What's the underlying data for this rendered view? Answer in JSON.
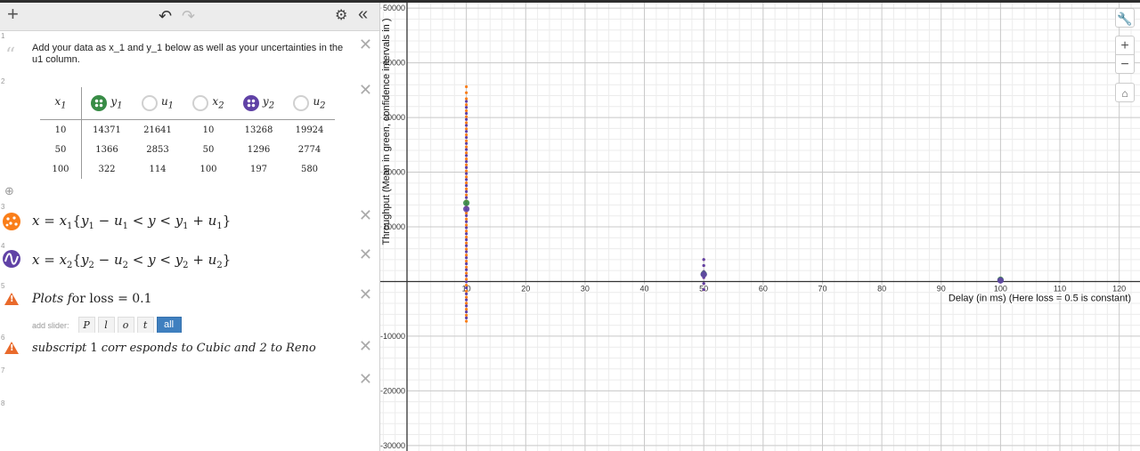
{
  "toolbar": {
    "add_label": "+",
    "undo_label": "↶",
    "redo_label": "↷",
    "settings_label": "⚙",
    "collapse_label": "«"
  },
  "expressions": [
    {
      "index": "1",
      "type": "note",
      "text": "Add your data as x_1 and y_1 below as well as your uncertainties in the u1 column."
    },
    {
      "index": "2",
      "type": "table",
      "headers": [
        "x",
        "y",
        "u",
        "x",
        "y",
        "u"
      ],
      "header_subs": [
        "1",
        "1",
        "1",
        "2",
        "2",
        "2"
      ],
      "rows": [
        [
          "10",
          "14371",
          "21641",
          "10",
          "13268",
          "19924"
        ],
        [
          "50",
          "1366",
          "2853",
          "50",
          "1296",
          "2774"
        ],
        [
          "100",
          "322",
          "114",
          "100",
          "197",
          "580"
        ]
      ]
    },
    {
      "index": "3",
      "type": "expression",
      "icon": "points-icon"
    },
    {
      "index": "4",
      "type": "expression",
      "icon": "curve-icon"
    },
    {
      "index": "5",
      "type": "expression",
      "text_a": "Plots ",
      "text_b": "f",
      "text_c": "or loss = 0.1",
      "slider_label": "add slider:",
      "slider_buttons": [
        "P",
        "l",
        "o",
        "t",
        "all"
      ]
    },
    {
      "index": "6",
      "type": "expression",
      "text_a": "subscript ",
      "text_b": "1",
      "text_c": " corr esponds to Cubic and 2 to Reno"
    },
    {
      "index": "7",
      "type": "empty"
    },
    {
      "index": "8",
      "type": "empty"
    }
  ],
  "expr3_math": {
    "lhs": "x",
    "sub1": "1",
    "y": "y",
    "u": "u"
  },
  "expr4_math": {
    "lhs": "x",
    "sub1": "2",
    "y": "y",
    "u": "u"
  },
  "graph": {
    "x_label": "Delay (in ms) (Here loss = 0.5 is constant)",
    "y_label": "Throughput (Mean in green, confidence intervals in )",
    "x_ticks": [
      "10",
      "20",
      "30",
      "40",
      "50",
      "60",
      "70",
      "80",
      "90",
      "100",
      "110",
      "120"
    ],
    "y_ticks": [
      "50000",
      "40000",
      "30000",
      "20000",
      "10000",
      "-10000",
      "-20000",
      "-30000"
    ],
    "controls": [
      "wrench-icon",
      "zoom-in-icon",
      "zoom-out-icon",
      "home-icon"
    ]
  },
  "colors": {
    "green": "#388c46",
    "purple": "#6042a6",
    "orange": "#fa7e19",
    "red": "#c74440",
    "accent": "#3f7fbf"
  },
  "chart_data": {
    "type": "scatter",
    "xlabel": "Delay (in ms) (Here loss = 0.5 is constant)",
    "ylabel": "Throughput (Mean in green, confidence intervals in )",
    "xlim": [
      -4.5,
      123.5
    ],
    "ylim": [
      -31000,
      51000
    ],
    "grid": true,
    "series": [
      {
        "color": "#388c46",
        "x": [
          10,
          50,
          100
        ],
        "y": [
          14371,
          1366,
          322
        ]
      },
      {
        "color": "#6042a6",
        "x": [
          10,
          50,
          100
        ],
        "y": [
          13268,
          1296,
          197
        ]
      }
    ],
    "intervals": [
      {
        "color": "#fa7e19",
        "x": 10,
        "y_low": -7270,
        "y_high": 36012
      },
      {
        "color": "#c74440",
        "x": 50,
        "y_low": -1487,
        "y_high": 4219
      },
      {
        "color": "#6042a6",
        "x": 10,
        "y_low": -6656,
        "y_high": 33192
      },
      {
        "color": "#6042a6",
        "x": 50,
        "y_low": -1478,
        "y_high": 4070
      }
    ]
  }
}
